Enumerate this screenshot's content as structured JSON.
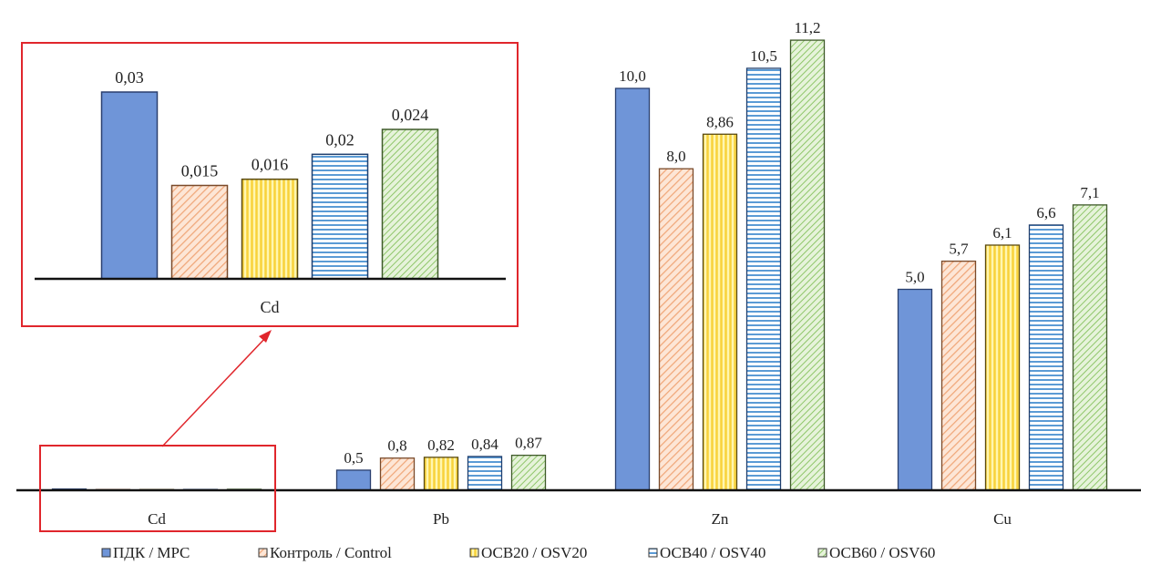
{
  "chart_data": {
    "type": "bar",
    "categories": [
      "Cd",
      "Pb",
      "Zn",
      "Cu"
    ],
    "series": [
      {
        "name": "ПДК / MPC",
        "color": "#6f95d8",
        "values": [
          0.03,
          0.5,
          10.0,
          5.0
        ],
        "labels": [
          "0,03",
          "0,5",
          "10,0",
          "5,0"
        ]
      },
      {
        "name": "Контроль / Control",
        "color": "#f0a779",
        "values": [
          0.015,
          0.8,
          8.0,
          5.7
        ],
        "labels": [
          "0,015",
          "0,8",
          "8,0",
          "5,7"
        ]
      },
      {
        "name": "ОСВ20 / OSV20",
        "color": "#f8d23a",
        "values": [
          0.016,
          0.82,
          8.86,
          6.1
        ],
        "labels": [
          "0,016",
          "0,82",
          "8,86",
          "6,1"
        ]
      },
      {
        "name": "ОСВ40 / OSV40",
        "color": "#5b9bd5",
        "values": [
          0.02,
          0.84,
          10.5,
          6.6
        ],
        "labels": [
          "0,02",
          "0,84",
          "10,5",
          "6,6"
        ]
      },
      {
        "name": "ОСВ60 / OSV60",
        "color": "#8fc66a",
        "values": [
          0.024,
          0.87,
          11.2,
          7.1
        ],
        "labels": [
          "0,024",
          "0,87",
          "11,2",
          "7,1"
        ]
      }
    ],
    "ylim": [
      0,
      11.5
    ],
    "inset": {
      "category": "Cd",
      "ylim": [
        0,
        0.032
      ]
    },
    "legend_position": "bottom",
    "grid": false,
    "highlight_color": "#e0262c"
  }
}
